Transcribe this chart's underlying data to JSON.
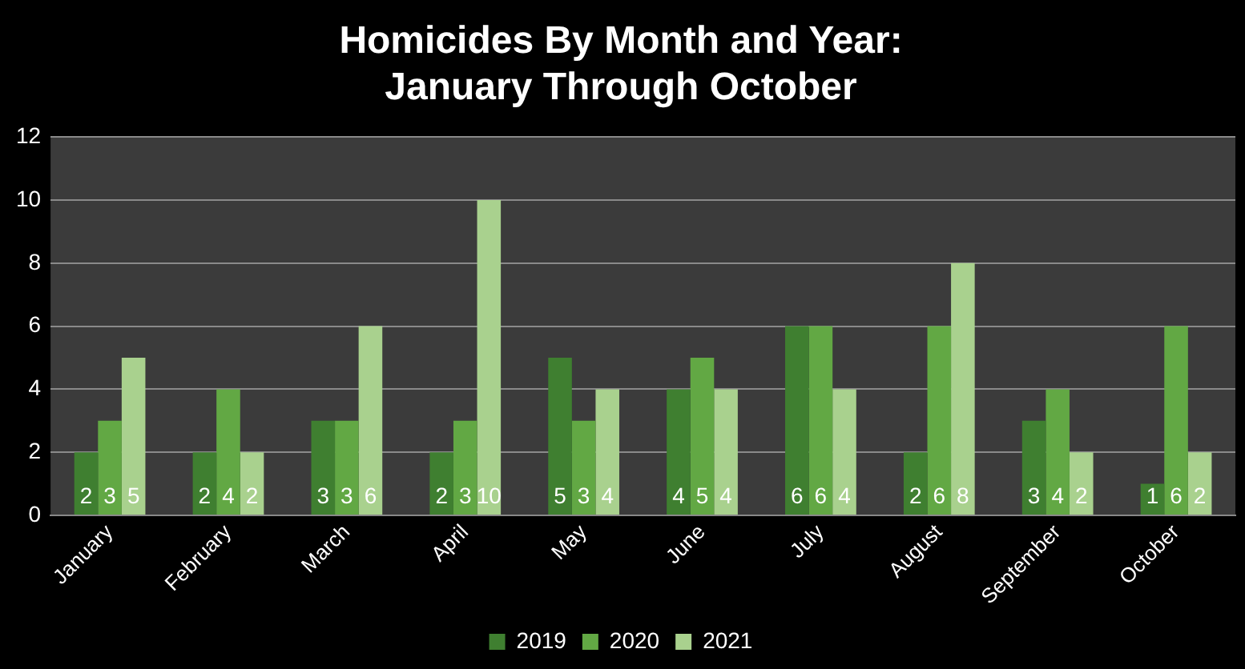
{
  "chart_data": {
    "type": "bar",
    "title": "Homicides By Month and Year:\nJanuary Through October",
    "categories": [
      "January",
      "February",
      "March",
      "April",
      "May",
      "June",
      "July",
      "August",
      "September",
      "October"
    ],
    "series": [
      {
        "name": "2019",
        "color": "#3f7f30",
        "values": [
          2,
          2,
          3,
          2,
          5,
          4,
          6,
          2,
          3,
          1
        ]
      },
      {
        "name": "2020",
        "color": "#62a844",
        "values": [
          3,
          4,
          3,
          3,
          3,
          5,
          6,
          6,
          4,
          6
        ]
      },
      {
        "name": "2021",
        "color": "#a9d18e",
        "values": [
          5,
          2,
          6,
          10,
          4,
          4,
          4,
          8,
          2,
          2
        ]
      }
    ],
    "ylim": [
      0,
      12
    ],
    "yticks": [
      0,
      2,
      4,
      6,
      8,
      10,
      12
    ],
    "grid": "y",
    "legend": "bottom",
    "data_labels": true
  }
}
